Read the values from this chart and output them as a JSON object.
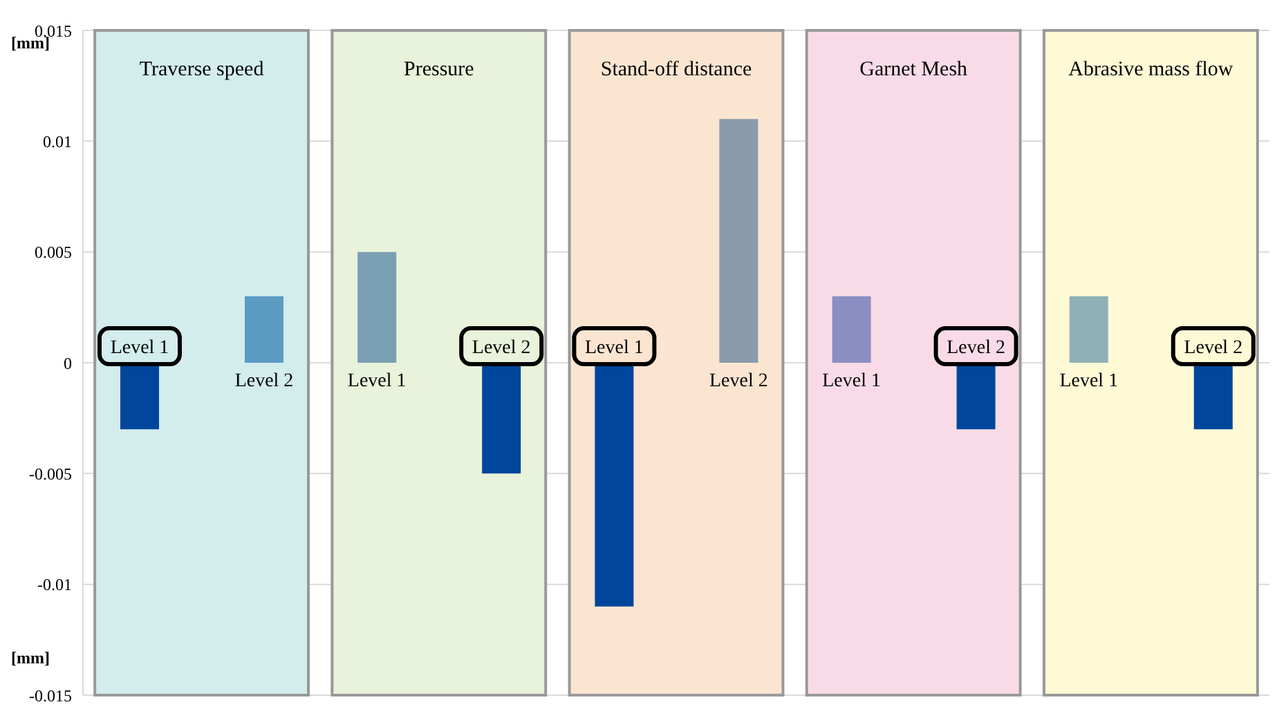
{
  "chart_data": {
    "type": "bar",
    "ylabel": "[mm]",
    "annotations": [
      "[mm]"
    ],
    "categories": [
      "Traverse speed",
      "Pressure",
      "Stand-off distance",
      "Garnet Mesh",
      "Abrasive mass flow"
    ],
    "series": [
      {
        "name": "Level 1",
        "values": [
          -0.003,
          0.005,
          -0.011,
          0.003,
          0.003
        ],
        "colors": [
          "#00469c",
          "#7a9fb2",
          "#00469c",
          "#8b8ec2",
          "#8fb0b6"
        ]
      },
      {
        "name": "Level 2",
        "values": [
          0.003,
          -0.005,
          0.011,
          -0.003,
          -0.003
        ],
        "colors": [
          "#5b9bc2",
          "#00469c",
          "#8a9aab",
          "#00469c",
          "#00469c"
        ]
      }
    ],
    "bands": [
      {
        "axis": "x",
        "from": "Traverse speed",
        "to": "Traverse speed",
        "color": "#d3ecec"
      },
      {
        "axis": "x",
        "from": "Pressure",
        "to": "Pressure",
        "color": "#e9f2da"
      },
      {
        "axis": "x",
        "from": "Stand-off distance",
        "to": "Stand-off distance",
        "color": "#fbe5d1"
      },
      {
        "axis": "x",
        "from": "Garnet Mesh",
        "to": "Garnet Mesh",
        "color": "#f9dbe7"
      },
      {
        "axis": "x",
        "from": "Abrasive mass flow",
        "to": "Abrasive mass flow",
        "color": "#fefad6"
      }
    ],
    "ylim": [
      -0.015,
      0.015
    ],
    "yticks": [
      -0.015,
      -0.01,
      -0.005,
      0,
      0.005,
      0.01,
      0.015
    ],
    "grid": "y"
  }
}
